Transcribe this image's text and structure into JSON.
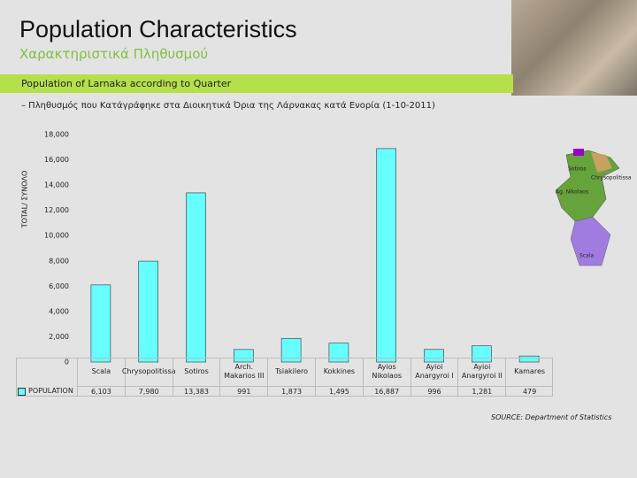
{
  "header": {
    "title": "Population Characteristics",
    "subtitle": "Χαρακτηριστικά Πληθυσμού",
    "banner": "Population of Larnaka according to Quarter",
    "note": "– Πληθυσμός που Κατάγράφηκε στα Διοικητικά Όρια της Λάρνακας κατά Ενορία (1-10-2011)"
  },
  "chart_data": {
    "type": "bar",
    "ylabel": "TOTAL/ ΣΥΝΟΛΟ",
    "categories": [
      "Scala",
      "Chrysopolitissa",
      "Sotiros",
      "Arch. Makarios III",
      "Tsiakilero",
      "Kokkines",
      "Ayios Nikolaos",
      "Ayioi Anargyroi I",
      "Ayioi Anargyroi II",
      "Kamares"
    ],
    "series": [
      {
        "name": "POPULATION",
        "color": "#66ffff",
        "values": [
          6103,
          7980,
          13383,
          991,
          1873,
          1495,
          16887,
          996,
          1281,
          479
        ],
        "value_labels": [
          "6,103",
          "7,980",
          "13,383",
          "991",
          "1,873",
          "1,495",
          "16,887",
          "996",
          "1,281",
          "479"
        ]
      }
    ],
    "ylim": [
      0,
      18000
    ],
    "yticks": [
      0,
      {
        "value": 2000,
        "label": "2,000"
      },
      {
        "value": 4000,
        "label": "4,000"
      },
      {
        "value": 6000,
        "label": "6,000"
      },
      {
        "value": 8000,
        "label": "8,000"
      },
      {
        "value": 10000,
        "label": "10,000"
      },
      {
        "value": 12000,
        "label": "12,000"
      },
      {
        "value": 14000,
        "label": "14,000"
      },
      {
        "value": 16000,
        "label": "16,000"
      },
      {
        "value": 18000,
        "label": "18,000"
      }
    ]
  },
  "map_labels": [
    "Sotiros",
    "Chrysopolitissa",
    "Ag. Nikolaos",
    "Scala"
  ],
  "source": "SOURCE: Department of Statistics"
}
